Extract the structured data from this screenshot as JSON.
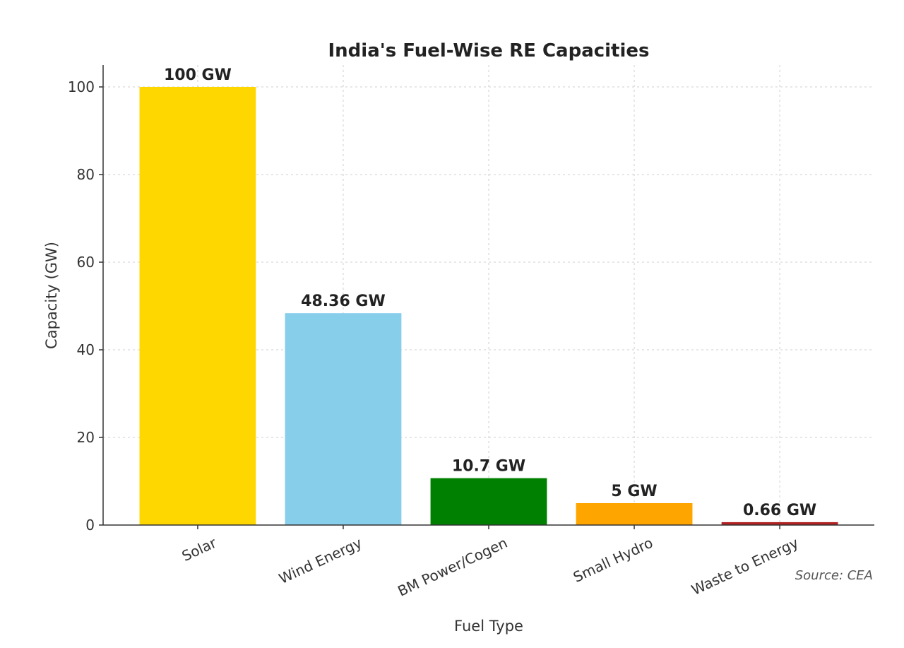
{
  "chart_data": {
    "type": "bar",
    "title": "India's Fuel-Wise RE Capacities",
    "xlabel": "Fuel Type",
    "ylabel": "Capacity (GW)",
    "categories": [
      "Solar",
      "Wind Energy",
      "BM Power/Cogen",
      "Small Hydro",
      "Waste to Energy"
    ],
    "values": [
      100,
      48.36,
      10.7,
      5,
      0.66
    ],
    "data_labels": [
      "100 GW",
      "48.36 GW",
      "10.7 GW",
      "5 GW",
      "0.66 GW"
    ],
    "colors": [
      "#FFD700",
      "#87CEEB",
      "#008000",
      "#FFA500",
      "#B22222"
    ],
    "ylim": [
      0,
      105
    ],
    "yticks": [
      0,
      20,
      40,
      60,
      80,
      100
    ],
    "grid": true,
    "source_note": "Source: CEA"
  }
}
